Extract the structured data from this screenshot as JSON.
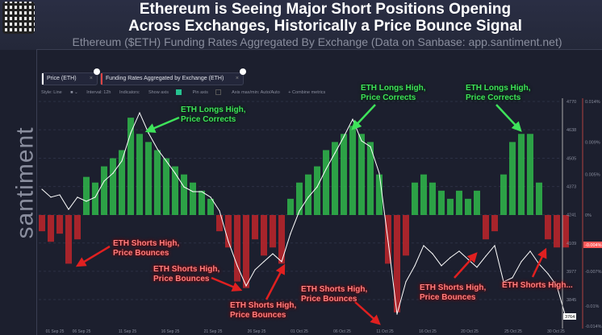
{
  "header": {
    "title_line1": "Ethereum is Seeing Major Short Positions Opening",
    "title_line2": "Across Exchanges, Historically a Price Bounce Signal",
    "subtitle": "Ethereum ($ETH) Funding Rates Aggregated By Exchange (Data on Sanbase: app.santiment.net)",
    "watermark": "santiment"
  },
  "tabs": [
    {
      "label": "Price (ETH)",
      "color": "#ffffff"
    },
    {
      "label": "Funding Rates Aggregated by Exchange (ETH)",
      "color": "#e04444"
    }
  ],
  "toolbar": {
    "style": "Style: Line",
    "interval": "Interval: 12h",
    "indicators": "Indicators:",
    "show_axis": "Show axis",
    "show_axis_checked": true,
    "pin_axis": "Pin axis",
    "pin_axis_checked": false,
    "axis_minmax": "Axis max/min: Auto/Auto",
    "combine": "+ Combine metrics"
  },
  "chart_data": {
    "type": "bar+line",
    "x_ticks": [
      "01 Sep 25",
      "06 Sep 25",
      "11 Sep 25",
      "16 Sep 25",
      "21 Sep 25",
      "26 Sep 25",
      "01 Oct 25",
      "06 Oct 25",
      "11 Oct 25",
      "16 Oct 25",
      "20 Oct 25",
      "25 Oct 25",
      "30 Oct 25"
    ],
    "price_axis_ticks": [
      "4770",
      "4638",
      "4505",
      "4373",
      "4241",
      "4109",
      "3977",
      "3845"
    ],
    "price_current": "3764",
    "price_ylim": [
      3764,
      4770
    ],
    "funding_axis_ticks": [
      "0.014%",
      "0.009%",
      "0.005%",
      "0%",
      "-0.007%",
      "-0.01%",
      "-0.014%"
    ],
    "funding_current": "-0.004%",
    "funding_ylim": [
      -0.014,
      0.014
    ],
    "colors": {
      "price": "#ffffff",
      "funding_positive": "#2fb84a",
      "funding_negative": "#c0262a"
    },
    "dates": [
      "Sep 1",
      "Sep 2",
      "Sep 3",
      "Sep 4",
      "Sep 5",
      "Sep 6",
      "Sep 7",
      "Sep 8",
      "Sep 9",
      "Sep 10",
      "Sep 11",
      "Sep 12",
      "Sep 13",
      "Sep 14",
      "Sep 15",
      "Sep 16",
      "Sep 17",
      "Sep 18",
      "Sep 19",
      "Sep 20",
      "Sep 21",
      "Sep 22",
      "Sep 23",
      "Sep 24",
      "Sep 25",
      "Sep 26",
      "Sep 27",
      "Sep 28",
      "Sep 29",
      "Sep 30",
      "Oct 1",
      "Oct 2",
      "Oct 3",
      "Oct 4",
      "Oct 5",
      "Oct 6",
      "Oct 7",
      "Oct 8",
      "Oct 9",
      "Oct 10",
      "Oct 11",
      "Oct 12",
      "Oct 13",
      "Oct 14",
      "Oct 15",
      "Oct 16",
      "Oct 17",
      "Oct 18",
      "Oct 19",
      "Oct 20",
      "Oct 21",
      "Oct 22",
      "Oct 23",
      "Oct 24",
      "Oct 25",
      "Oct 26",
      "Oct 27",
      "Oct 28",
      "Oct 29",
      "Oct 30"
    ],
    "price": [
      4360,
      4323,
      4334,
      4266,
      4323,
      4304,
      4323,
      4398,
      4435,
      4492,
      4623,
      4717,
      4623,
      4548,
      4492,
      4435,
      4371,
      4349,
      4349,
      4323,
      4259,
      4116,
      4003,
      3909,
      3984,
      4022,
      4059,
      4022,
      4153,
      4259,
      4323,
      4371,
      4454,
      4529,
      4605,
      4687,
      4586,
      4559,
      4435,
      4116,
      3777,
      3928,
      4003,
      4097,
      4059,
      4003,
      4041,
      4071,
      4033,
      3996,
      4048,
      4097,
      3928,
      3947,
      4022,
      4071,
      4011,
      3966,
      3909,
      3764
    ],
    "funding": [
      -0.002,
      -0.0033,
      -0.0023,
      -0.006,
      -0.003,
      0.0047,
      0.004,
      0.006,
      0.007,
      0.008,
      0.012,
      0.01,
      0.009,
      0.008,
      0.007,
      0.006,
      0.005,
      0.004,
      0.003,
      0.002,
      -0.002,
      -0.004,
      -0.0082,
      -0.009,
      -0.003,
      -0.005,
      -0.004,
      -0.006,
      0.002,
      0.004,
      0.005,
      0.006,
      0.008,
      0.009,
      0.01,
      0.011,
      0.01,
      0.009,
      0.005,
      -0.006,
      -0.012,
      -0.005,
      0.004,
      0.005,
      0.004,
      0.003,
      0.002,
      0.003,
      0.002,
      0.003,
      -0.003,
      -0.002,
      0.005,
      0.009,
      0.01,
      0.01,
      0.004,
      -0.003,
      -0.004,
      -0.004
    ],
    "annotations": [
      {
        "text1": "ETH Longs High,",
        "text2": "Price Corrects",
        "kind": "long"
      },
      {
        "text1": "ETH Longs High,",
        "text2": "Price Corrects",
        "kind": "long"
      },
      {
        "text1": "ETH Longs High,",
        "text2": "Price Corrects",
        "kind": "long"
      },
      {
        "text1": "ETH Shorts High,",
        "text2": "Price Bounces",
        "kind": "short"
      },
      {
        "text1": "ETH Shorts High,",
        "text2": "Price Bounces",
        "kind": "short"
      },
      {
        "text1": "ETH Shorts High,",
        "text2": "Price Bounces",
        "kind": "short"
      },
      {
        "text1": "ETH Shorts High,",
        "text2": "Price Bounces",
        "kind": "short"
      },
      {
        "text1": "ETH Shorts High,",
        "text2": "Price Bounces",
        "kind": "short"
      },
      {
        "text1": "ETH Shorts High...",
        "text2": "",
        "kind": "short"
      }
    ]
  }
}
